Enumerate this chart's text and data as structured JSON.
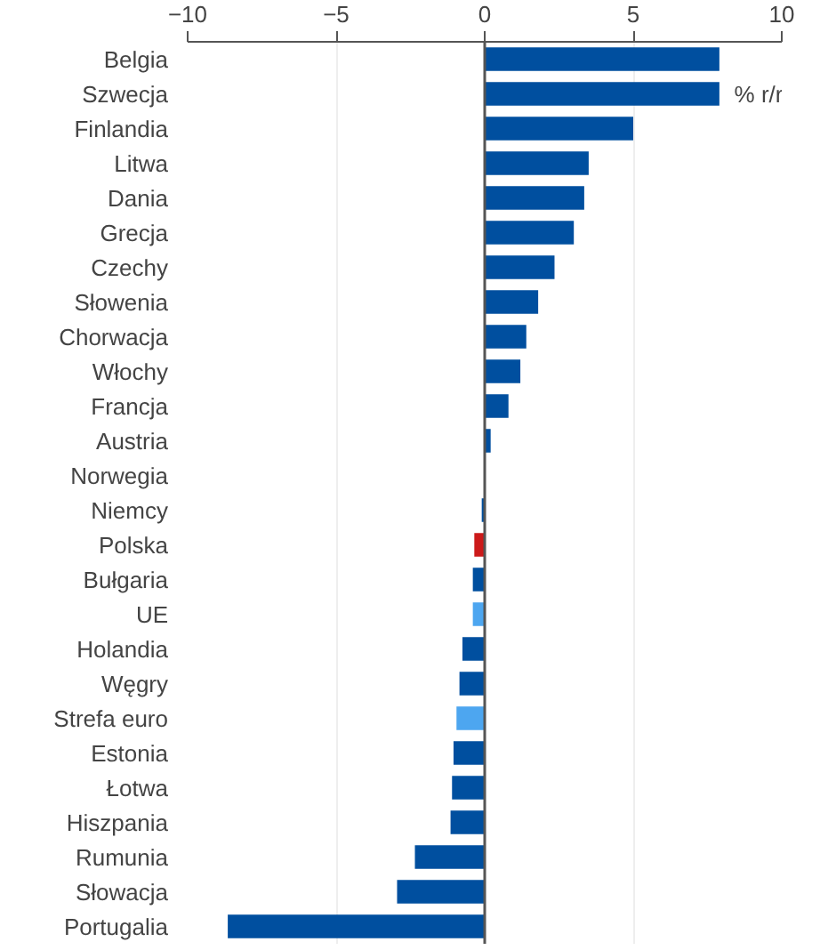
{
  "chart_data": {
    "type": "bar",
    "orientation": "horizontal",
    "categories": [
      "Belgia",
      "Szwecja",
      "Finlandia",
      "Litwa",
      "Dania",
      "Grecja",
      "Czechy",
      "Słowenia",
      "Chorwacja",
      "Włochy",
      "Francja",
      "Austria",
      "Norwegia",
      "Niemcy",
      "Polska",
      "Bułgaria",
      "UE",
      "Holandia",
      "Węgry",
      "Strefa euro",
      "Estonia",
      "Łotwa",
      "Hiszpania",
      "Rumunia",
      "Słowacja",
      "Portugalia"
    ],
    "values": [
      7.9,
      7.9,
      5.0,
      3.5,
      3.35,
      3.0,
      2.35,
      1.8,
      1.4,
      1.2,
      0.8,
      0.2,
      0,
      -0.1,
      -0.35,
      -0.4,
      -0.4,
      -0.75,
      -0.85,
      -0.95,
      -1.05,
      -1.1,
      -1.15,
      -2.35,
      -2.95,
      -8.65
    ],
    "colors": [
      "#004f9f",
      "#004f9f",
      "#004f9f",
      "#004f9f",
      "#004f9f",
      "#004f9f",
      "#004f9f",
      "#004f9f",
      "#004f9f",
      "#004f9f",
      "#004f9f",
      "#004f9f",
      "#004f9f",
      "#004f9f",
      "#cc1a1a",
      "#004f9f",
      "#4da6f0",
      "#004f9f",
      "#004f9f",
      "#4da6f0",
      "#004f9f",
      "#004f9f",
      "#004f9f",
      "#004f9f",
      "#004f9f",
      "#004f9f"
    ],
    "xlim": [
      -10,
      10
    ],
    "xticks": [
      -10,
      -5,
      0,
      5,
      10
    ],
    "grid": "x",
    "ref_lines": [
      {
        "axis": "x",
        "value": 0,
        "color": "#555555"
      }
    ],
    "annotations": [
      "% r/r"
    ]
  }
}
